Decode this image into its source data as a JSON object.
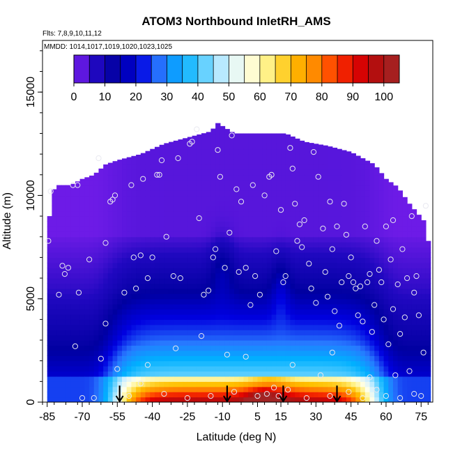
{
  "chart_data": {
    "type": "heatmap",
    "title": "ATOM3 Northbound InletRH_AMS",
    "subtitle_flights": "Flts: 7,8,9,10,11,12",
    "subtitle_dates": "MMDD: 1014,1017,1019,1020,1023,1025",
    "xlabel": "Latitude (deg N)",
    "ylabel": "Altitude (m)",
    "xlim": [
      -87,
      80
    ],
    "ylim": [
      0,
      17500
    ],
    "x_ticks": [
      -85,
      -70,
      -55,
      -40,
      -25,
      -10,
      5,
      15,
      30,
      45,
      60,
      75
    ],
    "x_tick_labels": [
      "-85",
      "-70",
      "-55",
      "-40",
      "-25",
      "-10",
      "5",
      "15",
      "30",
      "45",
      "60",
      "75"
    ],
    "y_ticks": [
      0,
      5000,
      10000,
      15000
    ],
    "y_tick_labels": [
      "0",
      "5000",
      "10000",
      "15000"
    ],
    "colorbar": {
      "range": [
        0,
        105
      ],
      "ticks": [
        0,
        10,
        20,
        30,
        40,
        50,
        60,
        70,
        80,
        90,
        100
      ],
      "tick_labels": [
        "0",
        "10",
        "20",
        "30",
        "40",
        "50",
        "60",
        "70",
        "80",
        "90",
        "100"
      ],
      "stops": [
        "#8020f0",
        "#2008c0",
        "#0000a0",
        "#0000e0",
        "#2878ff",
        "#00b0ff",
        "#60d0ff",
        "#d0f0ff",
        "#ffffe8",
        "#fff080",
        "#ffc000",
        "#ff9000",
        "#ff4000",
        "#e00000",
        "#b01010",
        "#a02828"
      ]
    },
    "arrows_lat": [
      -54,
      -8,
      16,
      39
    ],
    "coverage_top": [
      [
        -85,
        7800
      ],
      [
        -83,
        10200
      ],
      [
        -80,
        10500
      ],
      [
        -75,
        10500
      ],
      [
        -70,
        10800
      ],
      [
        -65,
        11000
      ],
      [
        -60,
        11500
      ],
      [
        -55,
        11700
      ],
      [
        -45,
        12000
      ],
      [
        -35,
        12500
      ],
      [
        -25,
        12800
      ],
      [
        -15,
        13100
      ],
      [
        -12,
        13500
      ],
      [
        -5,
        13000
      ],
      [
        0,
        13000
      ],
      [
        10,
        13000
      ],
      [
        17,
        13000
      ],
      [
        25,
        12600
      ],
      [
        35,
        12400
      ],
      [
        45,
        12100
      ],
      [
        55,
        11500
      ],
      [
        60,
        10800
      ],
      [
        65,
        10400
      ],
      [
        70,
        9600
      ],
      [
        73,
        9200
      ],
      [
        76,
        8800
      ],
      [
        78,
        7800
      ]
    ],
    "samples": [
      [
        -84.5,
        7800
      ],
      [
        -83.5,
        10200
      ],
      [
        -80,
        5200
      ],
      [
        -78.5,
        6600
      ],
      [
        -77.5,
        6200
      ],
      [
        -76,
        6500
      ],
      [
        -74,
        10500
      ],
      [
        -72,
        10500
      ],
      [
        -71.5,
        5300
      ],
      [
        -70,
        200
      ],
      [
        -67,
        6900
      ],
      [
        -65,
        200
      ],
      [
        -63,
        11800
      ],
      [
        -60,
        7700
      ],
      [
        -58,
        9700
      ],
      [
        -57,
        9800
      ],
      [
        -56,
        10000
      ],
      [
        -52,
        5300
      ],
      [
        -49,
        10500
      ],
      [
        -48,
        7000
      ],
      [
        -47,
        5500
      ],
      [
        -45,
        7100
      ],
      [
        -44,
        10800
      ],
      [
        -42,
        6000
      ],
      [
        -40,
        7000
      ],
      [
        -38,
        11000
      ],
      [
        -37,
        11000
      ],
      [
        -36,
        11700
      ],
      [
        -34,
        8000
      ],
      [
        -31,
        6100
      ],
      [
        -29,
        11800
      ],
      [
        -28,
        6000
      ],
      [
        -24,
        12500
      ],
      [
        -23,
        12600
      ],
      [
        -21,
        13200
      ],
      [
        -20,
        8900
      ],
      [
        -19,
        3200
      ],
      [
        -18,
        5200
      ],
      [
        -16,
        5400
      ],
      [
        -14,
        7000
      ],
      [
        -13,
        7400
      ],
      [
        -12,
        12200
      ],
      [
        -11,
        10900
      ],
      [
        -9,
        6500
      ],
      [
        -8,
        2300
      ],
      [
        -7,
        8200
      ],
      [
        -6,
        12900
      ],
      [
        -4,
        10300
      ],
      [
        -3,
        6300
      ],
      [
        -2,
        9700
      ],
      [
        0,
        6500
      ],
      [
        2,
        4700
      ],
      [
        3,
        10500
      ],
      [
        4,
        6100
      ],
      [
        6,
        5200
      ],
      [
        8,
        10000
      ],
      [
        10,
        10900
      ],
      [
        11,
        11000
      ],
      [
        13,
        7300
      ],
      [
        15,
        9300
      ],
      [
        16,
        5800
      ],
      [
        17,
        6100
      ],
      [
        19,
        12300
      ],
      [
        20,
        11300
      ],
      [
        21,
        9600
      ],
      [
        22,
        7800
      ],
      [
        23,
        8600
      ],
      [
        24,
        7500
      ],
      [
        25,
        8800
      ],
      [
        27,
        6700
      ],
      [
        28,
        5500
      ],
      [
        29,
        12100
      ],
      [
        30,
        4800
      ],
      [
        31,
        10900
      ],
      [
        32,
        1300
      ],
      [
        33,
        8400
      ],
      [
        34,
        6300
      ],
      [
        35,
        5100
      ],
      [
        36,
        9700
      ],
      [
        37,
        7400
      ],
      [
        38,
        4400
      ],
      [
        39,
        8500
      ],
      [
        40,
        3700
      ],
      [
        41,
        5800
      ],
      [
        42,
        9600
      ],
      [
        43,
        8100
      ],
      [
        44,
        6100
      ],
      [
        45,
        7000
      ],
      [
        46,
        5800
      ],
      [
        47,
        5500
      ],
      [
        48,
        4200
      ],
      [
        49,
        5600
      ],
      [
        50,
        3900
      ],
      [
        51,
        8500
      ],
      [
        52,
        5800
      ],
      [
        53,
        6200
      ],
      [
        54,
        3400
      ],
      [
        55,
        4700
      ],
      [
        56,
        7800
      ],
      [
        57,
        6400
      ],
      [
        58,
        5800
      ],
      [
        59,
        4000
      ],
      [
        60,
        8500
      ],
      [
        61,
        2800
      ],
      [
        62,
        6900
      ],
      [
        63,
        8800
      ],
      [
        64,
        1300
      ],
      [
        65,
        5700
      ],
      [
        66,
        3300
      ],
      [
        67,
        7400
      ],
      [
        68,
        4100
      ],
      [
        69,
        6000
      ],
      [
        70,
        1500
      ],
      [
        71,
        9000
      ],
      [
        72,
        5300
      ],
      [
        73,
        6100
      ],
      [
        74,
        4200
      ],
      [
        75,
        300
      ],
      [
        76,
        2400
      ],
      [
        77,
        9500
      ],
      [
        -62,
        2100
      ],
      [
        -50,
        300
      ],
      [
        -42,
        1800
      ],
      [
        -35,
        400
      ],
      [
        -25,
        200
      ],
      [
        -15,
        300
      ],
      [
        -5,
        500
      ],
      [
        5,
        300
      ],
      [
        9,
        400
      ],
      [
        12,
        700
      ],
      [
        14,
        300
      ],
      [
        18,
        600
      ],
      [
        26,
        200
      ],
      [
        36,
        300
      ],
      [
        44,
        500
      ],
      [
        50,
        200
      ],
      [
        56,
        600
      ],
      [
        60,
        300
      ],
      [
        66,
        200
      ],
      [
        72,
        400
      ],
      [
        -73,
        2700
      ],
      [
        -60,
        3800
      ],
      [
        -55,
        1600
      ],
      [
        -30,
        2600
      ],
      [
        0,
        2200
      ],
      [
        20,
        1800
      ],
      [
        37,
        2400
      ],
      [
        53,
        1200
      ],
      [
        63,
        4500
      ],
      [
        -45,
        900
      ]
    ],
    "rh_model": "smooth RH field: high (>60) below ~1.3 km between -58 and 58 deg N, moist plumes near -10 and 15 deg N, dry (<5) above ~8 km"
  }
}
